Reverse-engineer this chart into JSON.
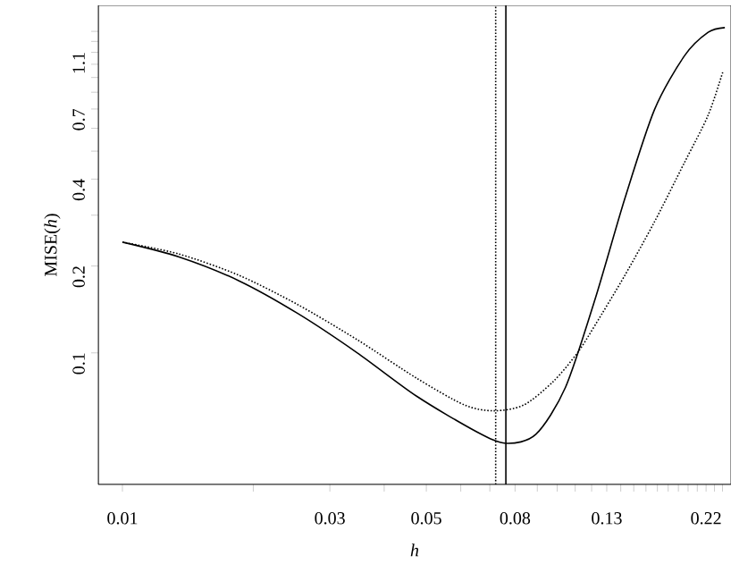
{
  "chart_data": {
    "type": "line",
    "xlabel": "*h*",
    "ylabel": "MISE(*h*)",
    "log": "xy",
    "x": [
      0.01,
      0.0135,
      0.0185,
      0.0253,
      0.0347,
      0.0475,
      0.0612,
      0.0651,
      0.0716,
      0.0762,
      0.0838,
      0.0893,
      0.0981,
      0.1045,
      0.1113,
      0.1223,
      0.1432,
      0.1675,
      0.1963,
      0.2224,
      0.2408,
      0.243
    ],
    "series": [
      {
        "color": "#000000",
        "line_style": "solid",
        "values": [
          0.242,
          0.215,
          0.178,
          0.137,
          0.1,
          0.0708,
          null,
          0.0534,
          null,
          0.0486,
          null,
          0.0522,
          null,
          0.076,
          null,
          0.154,
          0.344,
          0.698,
          1.07,
          1.29,
          null,
          1.34
        ]
      },
      {
        "color": "#000000",
        "line_style": "dotted",
        "values": [
          0.242,
          0.22,
          0.186,
          0.147,
          0.111,
          0.0817,
          0.066,
          null,
          0.063,
          null,
          0.066,
          null,
          0.0798,
          null,
          0.1,
          0.125,
          0.186,
          0.285,
          0.457,
          0.666,
          0.949,
          null
        ]
      }
    ],
    "xlim": [
      0.0088,
      0.251
    ],
    "ylim": [
      0.035,
      1.6
    ],
    "xticks": [
      0.01,
      {
        "value": 0.02,
        "label": null
      },
      0.03,
      {
        "value": 0.04,
        "label": null
      },
      0.05,
      {
        "value": 0.06,
        "label": null
      },
      {
        "value": 0.07,
        "label": null
      },
      0.08,
      {
        "value": 0.09,
        "label": null
      },
      {
        "value": 0.1,
        "label": null
      },
      {
        "value": 0.11,
        "label": null
      },
      {
        "value": 0.12,
        "label": null
      },
      0.13,
      {
        "value": 0.14,
        "label": null
      },
      {
        "value": 0.15,
        "label": null
      },
      {
        "value": 0.16,
        "label": null
      },
      {
        "value": 0.17,
        "label": null
      },
      {
        "value": 0.18,
        "label": null
      },
      {
        "value": 0.19,
        "label": null
      },
      {
        "value": 0.2,
        "label": null
      },
      {
        "value": 0.21,
        "label": null
      },
      0.22,
      {
        "value": 0.23,
        "label": null
      },
      {
        "value": 0.24,
        "label": null
      }
    ],
    "yticks": [
      0.1,
      0.2,
      {
        "value": 0.3,
        "label": null
      },
      0.4,
      {
        "value": 0.5,
        "label": null
      },
      {
        "value": 0.6,
        "label": null
      },
      0.7,
      {
        "value": 0.8,
        "label": null
      },
      {
        "value": 0.9,
        "label": null
      },
      {
        "value": 1.0,
        "label": null
      },
      1.1,
      {
        "value": 1.2,
        "label": null
      },
      {
        "value": 1.3,
        "label": null
      }
    ],
    "ref_lines": [
      {
        "axis": "x",
        "value": 0.0722,
        "line_style": "dotted",
        "color": "#000000"
      },
      {
        "axis": "x",
        "value": 0.0762,
        "line_style": "solid",
        "color": "#000000"
      }
    ]
  }
}
